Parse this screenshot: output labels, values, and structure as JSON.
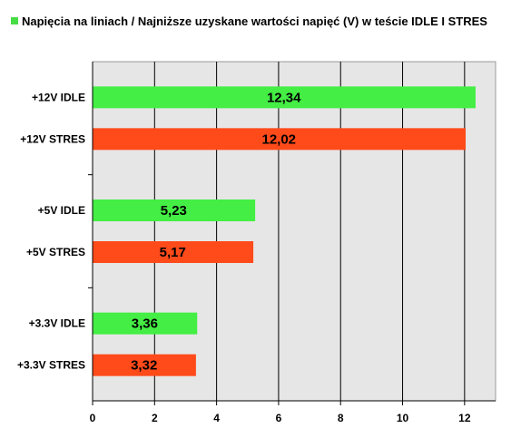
{
  "chart_data": {
    "type": "bar",
    "orientation": "horizontal",
    "legend": {
      "placement": "top-left",
      "label": "Napięcia na liniach / Najniższe uzyskane wartości napięć (V) w teście IDLE I STRES",
      "color": "#44dd44"
    },
    "groups": [
      {
        "items": [
          {
            "category": "+12V IDLE",
            "value": 12.34,
            "label": "12,34",
            "color": "#44ee44"
          },
          {
            "category": "+12V STRES",
            "value": 12.02,
            "label": "12,02",
            "color": "#ff4a1a"
          }
        ]
      },
      {
        "items": [
          {
            "category": "+5V IDLE",
            "value": 5.23,
            "label": "5,23",
            "color": "#44ee44"
          },
          {
            "category": "+5V STRES",
            "value": 5.17,
            "label": "5,17",
            "color": "#ff4a1a"
          }
        ]
      },
      {
        "items": [
          {
            "category": "+3.3V IDLE",
            "value": 3.36,
            "label": "3,36",
            "color": "#44ee44"
          },
          {
            "category": "+3.3V STRES",
            "value": 3.32,
            "label": "3,32",
            "color": "#ff4a1a"
          }
        ]
      }
    ],
    "xlim": [
      0,
      13
    ],
    "xticks": [
      0,
      2,
      4,
      6,
      8,
      10,
      12
    ],
    "grid": "vertical",
    "plot_background": "#e6e6e6"
  }
}
